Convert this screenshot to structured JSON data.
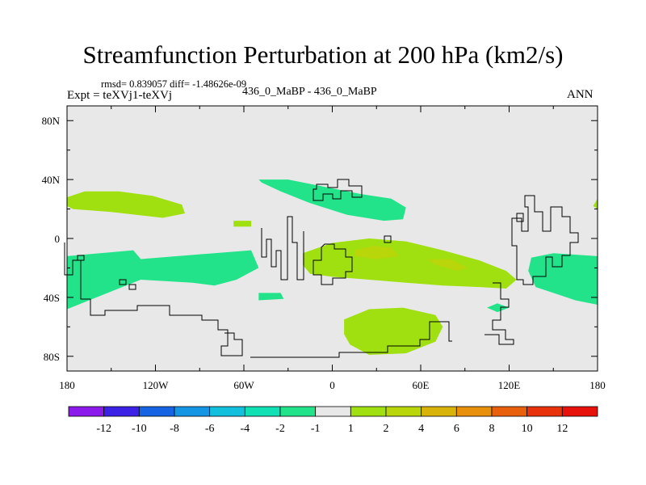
{
  "header": {
    "title": "Streamfunction Perturbation at 200 hPa (km2/s)",
    "stats": "rmsd= 0.839057 diff= -1.48626e-09",
    "experiment": "Expt = teXVj1-teXVj",
    "case": "436_0_MaBP - 436_0_MaBP",
    "season": "ANN"
  },
  "chart_data": {
    "type": "heatmap",
    "title": "Streamfunction Perturbation at 200 hPa (km2/s)",
    "xlabel": "",
    "ylabel": "",
    "xlim": [
      -180,
      180
    ],
    "ylim": [
      -90,
      90
    ],
    "xticks": [
      -180,
      -120,
      -60,
      0,
      60,
      120,
      180
    ],
    "xtick_labels": [
      "180",
      "120W",
      "60W",
      "0",
      "60E",
      "120E",
      "180"
    ],
    "yticks": [
      80,
      40,
      0,
      -40,
      -80
    ],
    "ytick_labels": [
      "80N",
      "40N",
      "0",
      "40S",
      "80S"
    ],
    "colorbar": {
      "levels": [
        -12,
        -10,
        -8,
        -6,
        -4,
        -2,
        -1,
        1,
        2,
        4,
        6,
        8,
        10,
        12
      ],
      "colors": [
        "#8c1aeb",
        "#3b22e4",
        "#1664e4",
        "#1496e4",
        "#12c0de",
        "#10e0b4",
        "#23e38a",
        "#e8e8e8",
        "#a0e010",
        "#b8d60a",
        "#d8b40a",
        "#e8900c",
        "#e8600c",
        "#e8320c",
        "#e8120c"
      ]
    },
    "regions": [
      {
        "value_range": [
          -2,
          -1
        ],
        "lon": [
          -180,
          -135,
          -130,
          -80,
          -55,
          -50,
          -65,
          -80,
          -95,
          -130,
          -160,
          -180
        ],
        "lat": [
          -12,
          -8,
          -14,
          -10,
          -8,
          -20,
          -28,
          -32,
          -30,
          -28,
          -40,
          -48
        ]
      },
      {
        "value_range": [
          -2,
          -1
        ],
        "lon": [
          -50,
          -35,
          -33,
          -50
        ],
        "lat": [
          -37,
          -37,
          -41,
          -42
        ]
      },
      {
        "value_range": [
          -2,
          -1
        ],
        "lon": [
          -50,
          -30,
          -5,
          20,
          40,
          50,
          48,
          35,
          10,
          -15,
          -35,
          -48
        ],
        "lat": [
          40,
          40,
          35,
          30,
          27,
          21,
          13,
          12,
          16,
          24,
          32,
          38
        ]
      },
      {
        "value_range": [
          -2,
          -1
        ],
        "lon": [
          112,
          120,
          112,
          105
        ],
        "lat": [
          -44,
          -47,
          -50,
          -47
        ]
      },
      {
        "value_range": [
          -2,
          -1
        ],
        "lon": [
          135,
          150,
          180,
          180,
          165,
          150,
          138,
          133
        ],
        "lat": [
          -13,
          -10,
          -12,
          -45,
          -42,
          -37,
          -33,
          -22
        ]
      },
      {
        "value_range": [
          1,
          2
        ],
        "lon": [
          -180,
          -168,
          -145,
          -122,
          -102,
          -100,
          -115,
          -150,
          -176,
          -180
        ],
        "lat": [
          28,
          32,
          32,
          29,
          23,
          17,
          14,
          18,
          20,
          22
        ]
      },
      {
        "value_range": [
          1,
          2
        ],
        "lon": [
          -67,
          -55,
          -55,
          -67
        ],
        "lat": [
          12,
          12,
          8,
          8
        ]
      },
      {
        "value_range": [
          1,
          2
        ],
        "lon": [
          -20,
          0,
          25,
          50,
          75,
          100,
          118,
          125,
          118,
          100,
          75,
          50,
          25,
          0,
          -15,
          -20
        ],
        "lat": [
          -10,
          -3,
          0,
          -2,
          -8,
          -15,
          -22,
          -28,
          -34,
          -33,
          -32,
          -30,
          -28,
          -26,
          -24,
          -18
        ]
      },
      {
        "value_range": [
          1,
          2
        ],
        "lon": [
          8,
          25,
          48,
          70,
          75,
          70,
          50,
          25,
          12,
          8
        ],
        "lat": [
          -55,
          -48,
          -47,
          -52,
          -60,
          -70,
          -78,
          -79,
          -72,
          -65
        ]
      },
      {
        "value_range": [
          1,
          2
        ],
        "lon": [
          180,
          177,
          180
        ],
        "lat": [
          27,
          22,
          20
        ]
      },
      {
        "value_range": [
          2,
          4
        ],
        "lon": [
          15,
          28,
          40,
          45,
          30,
          15
        ],
        "lat": [
          -8,
          -5,
          -6,
          -12,
          -14,
          -12
        ]
      },
      {
        "value_range": [
          2,
          4
        ],
        "lon": [
          65,
          80,
          92,
          85,
          70
        ],
        "lat": [
          -14,
          -14,
          -20,
          -22,
          -18
        ]
      }
    ]
  }
}
